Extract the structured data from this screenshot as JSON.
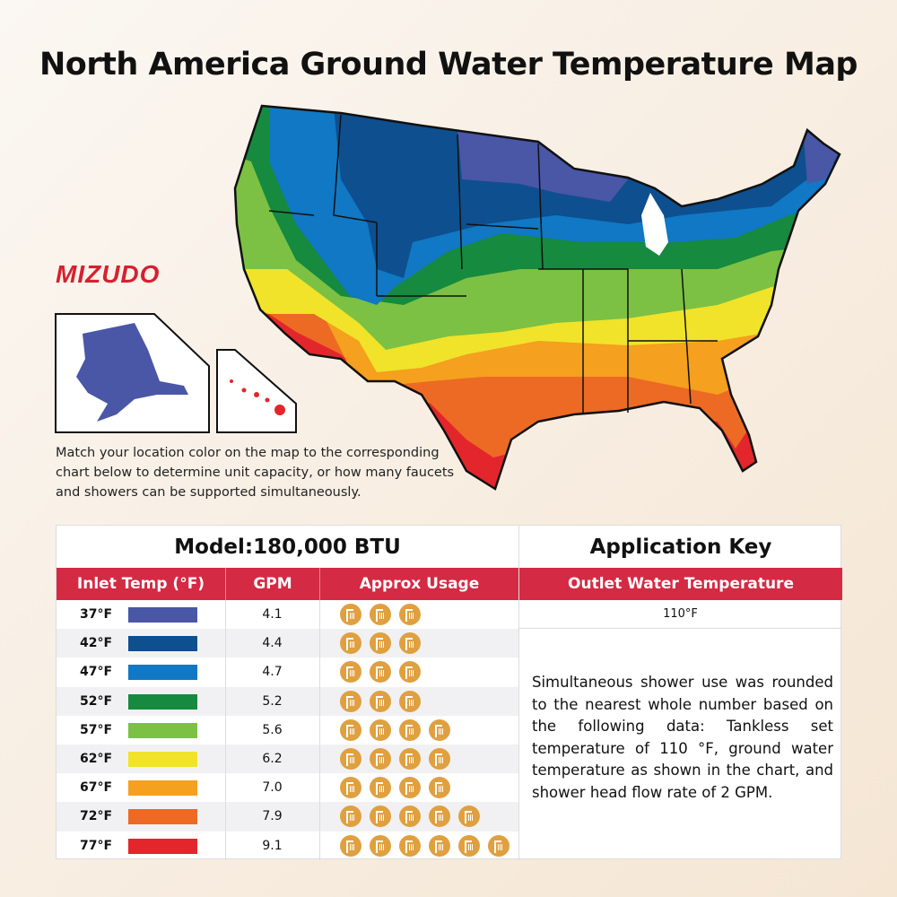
{
  "title": "North America Ground Water Temperature Map",
  "logo": "MIZUDO",
  "description": "Match your location color on the map to the corresponding chart below to determine unit capacity, or how many faucets and showers can be supported simultaneously.",
  "table": {
    "model": "Model:180,000 BTU",
    "headers": {
      "inlet": "Inlet Temp (°F)",
      "gpm": "GPM",
      "usage": "Approx Usage"
    },
    "rows": [
      {
        "temp": "37°F",
        "color": "#4a56a6",
        "gpm": "4.1",
        "showers": 3
      },
      {
        "temp": "42°F",
        "color": "#0e4f8f",
        "gpm": "4.4",
        "showers": 3
      },
      {
        "temp": "47°F",
        "color": "#1078c4",
        "gpm": "4.7",
        "showers": 3
      },
      {
        "temp": "52°F",
        "color": "#168a3e",
        "gpm": "5.2",
        "showers": 3
      },
      {
        "temp": "57°F",
        "color": "#7cc143",
        "gpm": "5.6",
        "showers": 4
      },
      {
        "temp": "62°F",
        "color": "#f0e32a",
        "gpm": "6.2",
        "showers": 4
      },
      {
        "temp": "67°F",
        "color": "#f5a01e",
        "gpm": "7.0",
        "showers": 4
      },
      {
        "temp": "72°F",
        "color": "#ec6a24",
        "gpm": "7.9",
        "showers": 5
      },
      {
        "temp": "77°F",
        "color": "#e3262b",
        "gpm": "9.1",
        "showers": 6
      }
    ]
  },
  "key": {
    "title": "Application Key",
    "header": "Outlet Water Temperature",
    "outlet": "110°F",
    "note": "Simultaneous shower use was rounded to the nearest whole number based on the following data: Tankless set temperature of 110 °F, ground water temperature as shown in the chart, and shower head flow rate of 2 GPM."
  },
  "icons": {
    "usage": "shower-icon"
  }
}
